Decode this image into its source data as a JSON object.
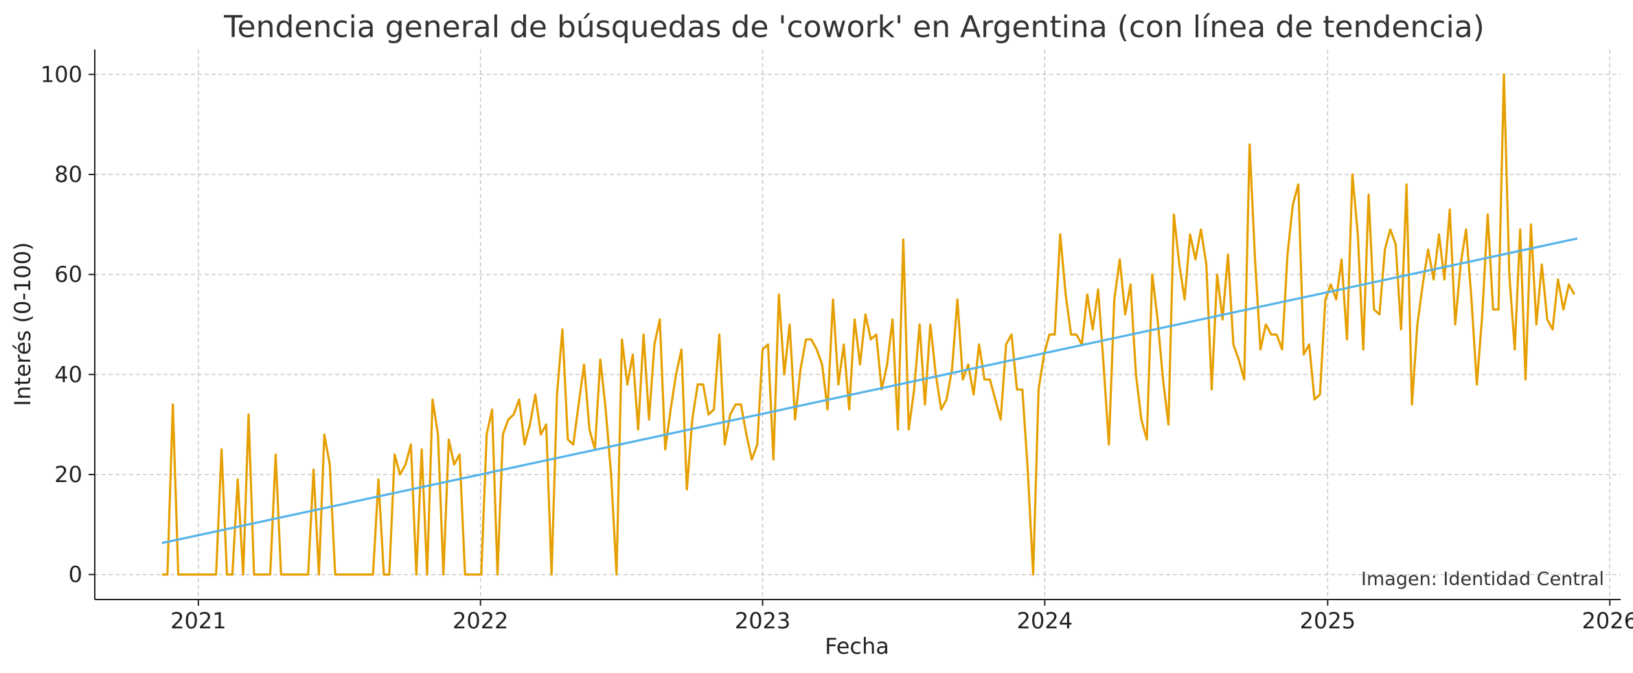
{
  "chart_data": {
    "type": "line",
    "title": "Tendencia general de búsquedas de 'cowork' en Argentina (con línea de tendencia)",
    "xlabel": "Fecha",
    "ylabel": "Interés (0-100)",
    "x_ticks": [
      "2021",
      "2022",
      "2023",
      "2024",
      "2025",
      "2026"
    ],
    "y_ticks": [
      "0",
      "20",
      "40",
      "60",
      "80",
      "100"
    ],
    "xlim": [
      "2020-08-20",
      "2026-01-15"
    ],
    "ylim": [
      -5,
      105
    ],
    "grid": true,
    "colors": {
      "series": "#E69F00",
      "trend": "#56B4E9",
      "grid": "#c8c8c8"
    },
    "credit": "Imagen: Identidad Central",
    "x_start": "2020-11-15",
    "x_step_days": 7,
    "series": [
      {
        "values": [
          0,
          0,
          34,
          0,
          0,
          0,
          0,
          0,
          0,
          0,
          0,
          25,
          0,
          0,
          19,
          0,
          32,
          0,
          0,
          0,
          0,
          24,
          0,
          0,
          0,
          0,
          0,
          0,
          21,
          0,
          28,
          22,
          0,
          0,
          0,
          0,
          0,
          0,
          0,
          0,
          19,
          0,
          0,
          24,
          20,
          22,
          26,
          0,
          25,
          0,
          35,
          28,
          0,
          27,
          22,
          24,
          0,
          0,
          0,
          0,
          28,
          33,
          0,
          28,
          31,
          32,
          35,
          26,
          30,
          36,
          28,
          30,
          0,
          36,
          49,
          27,
          26,
          34,
          42,
          29,
          25,
          43,
          33,
          20,
          0,
          47,
          38,
          44,
          29,
          48,
          31,
          46,
          51,
          25,
          33,
          40,
          45,
          17,
          31,
          38,
          38,
          32,
          33,
          48,
          26,
          32,
          34,
          34,
          28,
          23,
          26,
          45,
          46,
          23,
          56,
          40,
          50,
          31,
          41,
          47,
          47,
          45,
          42,
          33,
          55,
          38,
          46,
          33,
          51,
          42,
          52,
          47,
          48,
          37,
          42,
          51,
          29,
          67,
          29,
          37,
          50,
          34,
          50,
          40,
          33,
          35,
          41,
          55,
          39,
          42,
          36,
          46,
          39,
          39,
          35,
          31,
          46,
          48,
          37,
          37,
          21,
          0,
          37,
          44,
          48,
          48,
          68,
          56,
          48,
          48,
          46,
          56,
          49,
          57,
          42,
          26,
          55,
          63,
          52,
          58,
          40,
          31,
          27,
          60,
          51,
          39,
          30,
          72,
          62,
          55,
          68,
          63,
          69,
          62,
          37,
          60,
          51,
          64,
          46,
          43,
          39,
          86,
          63,
          45,
          50,
          48,
          48,
          45,
          64,
          74,
          78,
          44,
          46,
          35,
          36,
          55,
          58,
          55,
          63,
          47,
          80,
          68,
          45,
          76,
          53,
          52,
          65,
          69,
          66,
          49,
          78,
          34,
          50,
          58,
          65,
          59,
          68,
          59,
          73,
          50,
          62,
          69,
          55,
          38,
          52,
          72,
          53,
          53,
          100,
          60,
          45,
          69,
          39,
          70,
          50,
          62,
          51,
          49,
          59,
          53,
          58,
          56
        ]
      },
      {
        "type": "trend",
        "x": [
          "2020-11-15",
          "2025-11-20"
        ],
        "values": [
          6.3,
          67.2
        ]
      }
    ]
  }
}
